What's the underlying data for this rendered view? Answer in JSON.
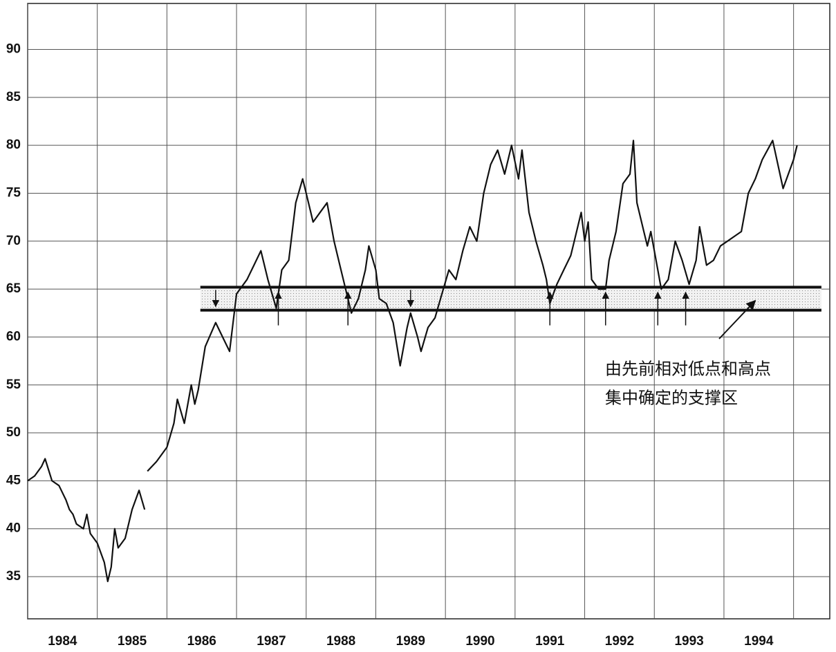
{
  "chart_data": {
    "type": "line",
    "x": [
      1984.0,
      1984.1,
      1984.2,
      1984.25,
      1984.35,
      1984.45,
      1984.55,
      1984.6,
      1984.65,
      1984.7,
      1984.8,
      1984.85,
      1984.9,
      1985.0,
      1985.1,
      1985.15,
      1985.2,
      1985.25,
      1985.3,
      1985.4,
      1985.5,
      1985.6,
      1985.68,
      1985.7,
      1985.72,
      1985.85,
      1986.0,
      1986.1,
      1986.15,
      1986.25,
      1986.35,
      1986.4,
      1986.45,
      1986.55,
      1986.7,
      1986.8,
      1986.9,
      1987.0,
      1987.15,
      1987.25,
      1987.35,
      1987.45,
      1987.57,
      1987.65,
      1987.75,
      1987.85,
      1987.95,
      1988.0,
      1988.1,
      1988.2,
      1988.3,
      1988.4,
      1988.5,
      1988.6,
      1988.65,
      1988.75,
      1988.85,
      1988.9,
      1989.0,
      1989.05,
      1989.15,
      1989.25,
      1989.35,
      1989.45,
      1989.5,
      1989.6,
      1989.65,
      1989.75,
      1989.85,
      1989.95,
      1990.05,
      1990.15,
      1990.25,
      1990.35,
      1990.45,
      1990.55,
      1990.65,
      1990.75,
      1990.85,
      1990.95,
      1991.05,
      1991.1,
      1991.2,
      1991.3,
      1991.4,
      1991.45,
      1991.5,
      1991.6,
      1991.7,
      1991.8,
      1991.85,
      1991.95,
      1992.0,
      1992.05,
      1992.1,
      1992.2,
      1992.3,
      1992.35,
      1992.45,
      1992.55,
      1992.65,
      1992.7,
      1992.75,
      1992.85,
      1992.9,
      1992.95,
      1993.05,
      1993.1,
      1993.2,
      1993.3,
      1993.4,
      1993.5,
      1993.6,
      1993.65,
      1993.75,
      1993.85,
      1993.95,
      1994.05,
      1994.15,
      1994.25,
      1994.35,
      1994.45,
      1994.55,
      1994.7,
      1994.85,
      1995.0,
      1995.05
    ],
    "values": [
      45,
      45.5,
      46.5,
      47.3,
      45,
      44.5,
      43,
      42,
      41.5,
      40.5,
      40,
      41.5,
      39.5,
      38.5,
      36.5,
      34.5,
      36,
      40,
      38,
      39,
      42,
      44,
      42,
      null,
      46,
      47,
      48.5,
      51,
      53.5,
      51,
      55,
      53,
      54.5,
      59,
      61.5,
      60,
      58.5,
      64.5,
      66,
      67.5,
      69,
      66,
      63,
      67,
      68,
      74,
      76.5,
      75,
      72,
      73,
      74,
      70,
      67,
      64,
      62.5,
      64,
      67,
      69.5,
      67,
      64,
      63.5,
      61.5,
      57,
      61,
      62.5,
      60,
      58.5,
      61,
      62,
      64.5,
      67,
      66,
      69,
      71.5,
      70,
      75,
      78,
      79.5,
      77,
      80,
      76.5,
      79.5,
      73,
      70,
      67.5,
      66,
      63.5,
      65.5,
      67,
      68.5,
      70,
      73,
      70,
      72,
      66,
      65,
      65,
      68,
      71,
      76,
      77,
      80.5,
      74,
      71,
      69.5,
      71,
      67,
      65,
      66,
      70,
      68,
      65.5,
      68,
      71.5,
      67.5,
      68,
      69.5,
      70,
      70.5,
      71,
      75,
      76.5,
      78.5,
      80.5,
      75.5,
      78.5,
      80
    ],
    "color": "#111111",
    "xlim": [
      1984,
      1995.52
    ],
    "ylim": [
      30.6,
      94.8
    ],
    "yticks": [
      35,
      40,
      45,
      50,
      55,
      60,
      65,
      70,
      75,
      80,
      85,
      90
    ],
    "xticks": [
      1984,
      1985,
      1986,
      1987,
      1988,
      1989,
      1990,
      1991,
      1992,
      1993,
      1994,
      {
        "value": 1995,
        "label": null
      }
    ],
    "grid": true,
    "support_zone": {
      "x": [
        1986.48,
        1995.4
      ],
      "y": [
        62.8,
        65.2
      ]
    },
    "arrows_down_x": [
      1986.7,
      1989.5
    ],
    "arrows_up_x": [
      1987.6,
      1988.6,
      1991.5,
      1992.3,
      1993.05,
      1993.45
    ],
    "annotation": [
      "由先前相对低点和高点",
      "集中确定的支撑区"
    ],
    "annotation_target": [
      1994.45,
      63.8
    ]
  }
}
